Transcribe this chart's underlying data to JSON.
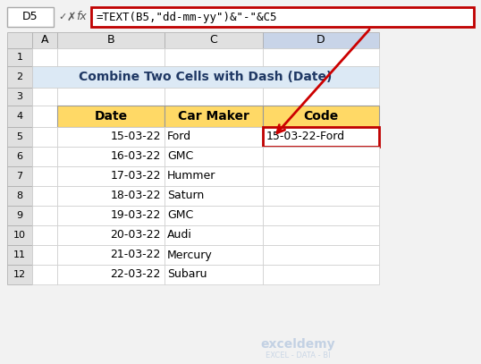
{
  "title": "Combine Two Cells with Dash (Date)",
  "title_bg": "#dce9f5",
  "title_color": "#1f3864",
  "formula_bar_text": "=TEXT(B5,\"dd-mm-yy\")&\"-\"&C5",
  "formula_bar_border": "#c00000",
  "cell_ref": "D5",
  "headers": [
    "Date",
    "Car Maker",
    "Code"
  ],
  "header_bg": "#ffd966",
  "rows": [
    [
      "15-03-22",
      "Ford",
      "15-03-22-Ford"
    ],
    [
      "16-03-22",
      "GMC",
      ""
    ],
    [
      "17-03-22",
      "Hummer",
      ""
    ],
    [
      "18-03-22",
      "Saturn",
      ""
    ],
    [
      "19-03-22",
      "GMC",
      ""
    ],
    [
      "20-03-22",
      "Audi",
      ""
    ],
    [
      "21-03-22",
      "Mercury",
      ""
    ],
    [
      "22-03-22",
      "Subaru",
      ""
    ]
  ],
  "row_numbers": [
    5,
    6,
    7,
    8,
    9,
    10,
    11,
    12
  ],
  "col_labels": [
    "A",
    "B",
    "C",
    "D"
  ],
  "highlighted_cell_border": "#c00000",
  "bg_color": "#f2f2f2",
  "watermark": "exceldemy",
  "watermark_sub": "EXCEL - DATA - BI"
}
